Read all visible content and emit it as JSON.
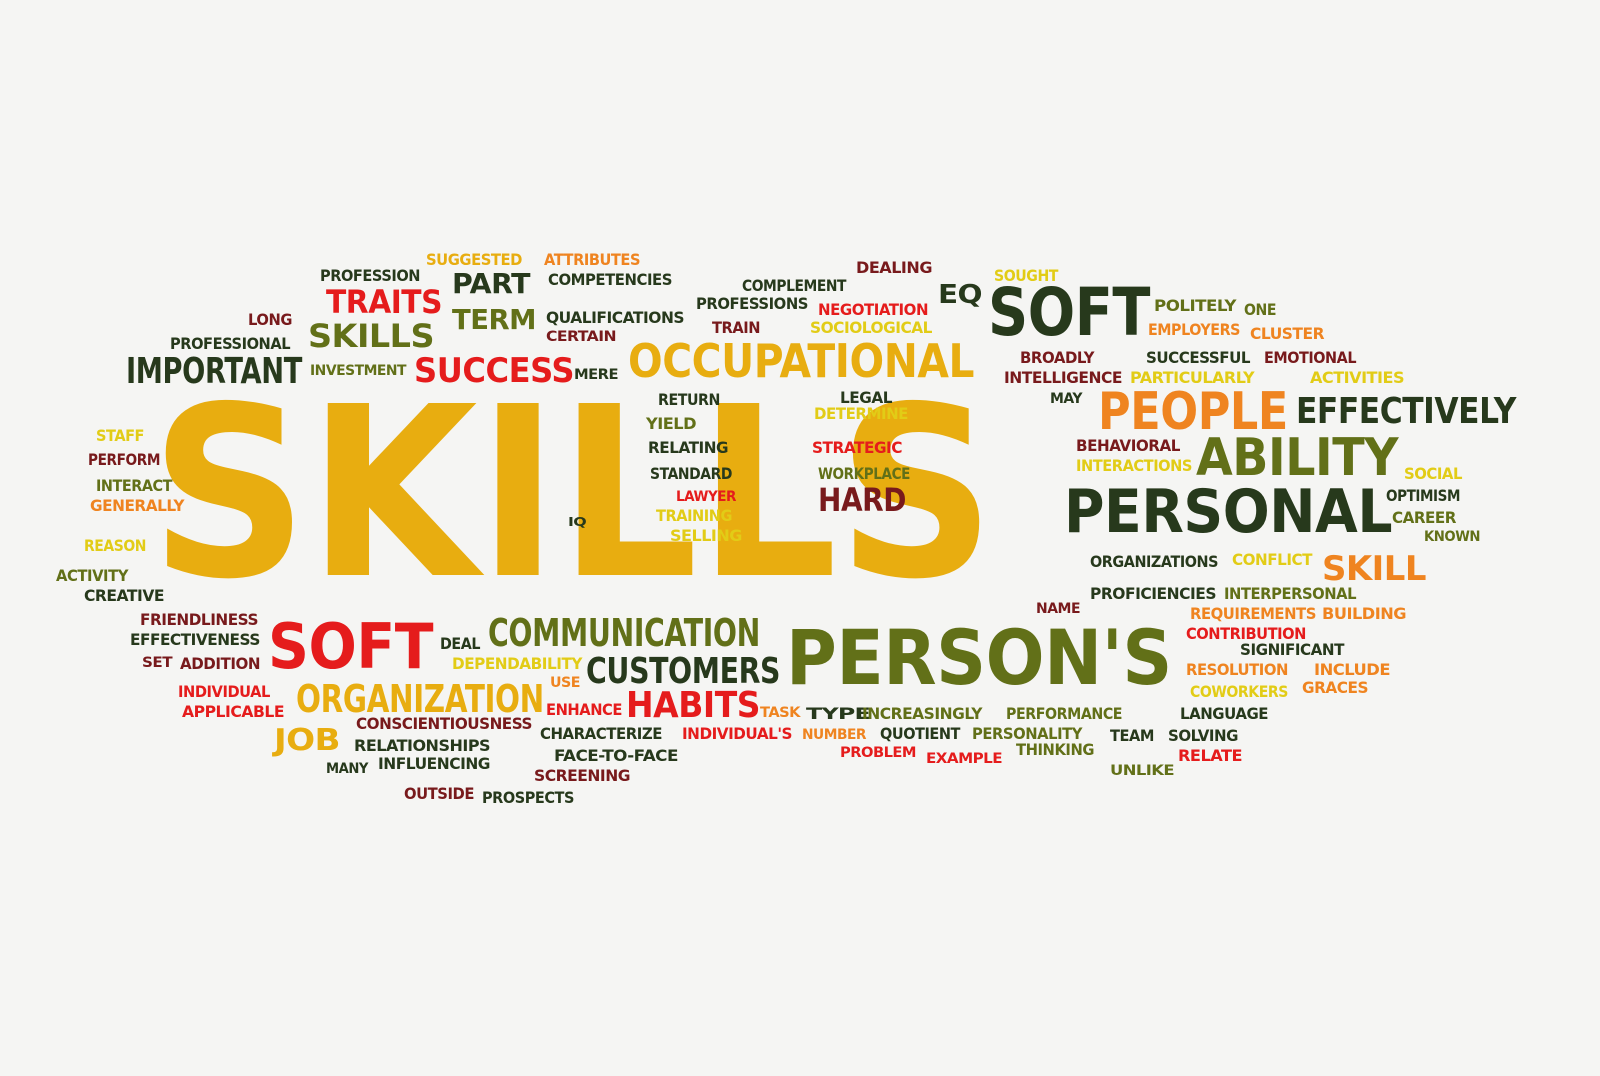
{
  "word_cloud": {
    "palette": {
      "gold": "#e8ad10",
      "orange": "#ef8420",
      "yellow": "#e2cc16",
      "olive": "#627018",
      "dark_green": "#27391c",
      "red": "#e51c1c",
      "brown": "#781a1c",
      "background": "#f5f5f3"
    },
    "words": [
      {
        "text": "SKILLS",
        "color": "gold"
      },
      {
        "text": "OCCUPATIONAL",
        "color": "gold"
      },
      {
        "text": "PERSON'S",
        "color": "olive"
      },
      {
        "text": "PERSONAL",
        "color": "dark_green"
      },
      {
        "text": "SOFT",
        "color": "dark_green"
      },
      {
        "text": "SOFT",
        "color": "red"
      },
      {
        "text": "PEOPLE",
        "color": "orange"
      },
      {
        "text": "ABILITY",
        "color": "olive"
      },
      {
        "text": "EFFECTIVELY",
        "color": "dark_green"
      },
      {
        "text": "COMMUNICATION",
        "color": "olive"
      },
      {
        "text": "CUSTOMERS",
        "color": "dark_green"
      },
      {
        "text": "ORGANIZATION",
        "color": "gold"
      },
      {
        "text": "HABITS",
        "color": "red"
      },
      {
        "text": "SUCCESS",
        "color": "red"
      },
      {
        "text": "IMPORTANT",
        "color": "dark_green"
      },
      {
        "text": "TRAITS",
        "color": "red"
      },
      {
        "text": "SKILLS",
        "color": "olive"
      },
      {
        "text": "PART",
        "color": "dark_green"
      },
      {
        "text": "TERM",
        "color": "olive"
      },
      {
        "text": "HARD",
        "color": "brown"
      },
      {
        "text": "SKILL",
        "color": "orange"
      },
      {
        "text": "JOB",
        "color": "gold"
      },
      {
        "text": "EQ",
        "color": "dark_green"
      },
      {
        "text": "PROFESSION",
        "color": "dark_green"
      },
      {
        "text": "SUGGESTED",
        "color": "gold"
      },
      {
        "text": "ATTRIBUTES",
        "color": "orange"
      },
      {
        "text": "COMPETENCIES",
        "color": "dark_green"
      },
      {
        "text": "DEALING",
        "color": "brown"
      },
      {
        "text": "SOUGHT",
        "color": "yellow"
      },
      {
        "text": "COMPLEMENT",
        "color": "dark_green"
      },
      {
        "text": "PROFESSIONS",
        "color": "dark_green"
      },
      {
        "text": "NEGOTIATION",
        "color": "red"
      },
      {
        "text": "TRAIN",
        "color": "brown"
      },
      {
        "text": "SOCIOLOGICAL",
        "color": "yellow"
      },
      {
        "text": "POLITELY",
        "color": "olive"
      },
      {
        "text": "ONE",
        "color": "olive"
      },
      {
        "text": "EMPLOYERS",
        "color": "orange"
      },
      {
        "text": "CLUSTER",
        "color": "orange"
      },
      {
        "text": "LONG",
        "color": "brown"
      },
      {
        "text": "PROFESSIONAL",
        "color": "dark_green"
      },
      {
        "text": "QUALIFICATIONS",
        "color": "dark_green"
      },
      {
        "text": "CERTAIN",
        "color": "brown"
      },
      {
        "text": "INVESTMENT",
        "color": "olive"
      },
      {
        "text": "MERE",
        "color": "dark_green"
      },
      {
        "text": "BROADLY",
        "color": "brown"
      },
      {
        "text": "SUCCESSFUL",
        "color": "dark_green"
      },
      {
        "text": "EMOTIONAL",
        "color": "brown"
      },
      {
        "text": "INTELLIGENCE",
        "color": "brown"
      },
      {
        "text": "PARTICULARLY",
        "color": "yellow"
      },
      {
        "text": "ACTIVITIES",
        "color": "yellow"
      },
      {
        "text": "LEGAL",
        "color": "dark_green"
      },
      {
        "text": "RETURN",
        "color": "dark_green"
      },
      {
        "text": "DETERMINE",
        "color": "yellow"
      },
      {
        "text": "MAY",
        "color": "dark_green"
      },
      {
        "text": "YIELD",
        "color": "olive"
      },
      {
        "text": "RELATING",
        "color": "dark_green"
      },
      {
        "text": "STRATEGIC",
        "color": "red"
      },
      {
        "text": "STAFF",
        "color": "yellow"
      },
      {
        "text": "PERFORM",
        "color": "brown"
      },
      {
        "text": "BEHAVIORAL",
        "color": "brown"
      },
      {
        "text": "INTERACTIONS",
        "color": "yellow"
      },
      {
        "text": "SOCIAL",
        "color": "yellow"
      },
      {
        "text": "STANDARD",
        "color": "dark_green"
      },
      {
        "text": "WORKPLACE",
        "color": "olive"
      },
      {
        "text": "INTERACT",
        "color": "olive"
      },
      {
        "text": "GENERALLY",
        "color": "orange"
      },
      {
        "text": "LAWYER",
        "color": "red"
      },
      {
        "text": "TRAINING",
        "color": "yellow"
      },
      {
        "text": "SELLING",
        "color": "yellow"
      },
      {
        "text": "IQ",
        "color": "dark_green"
      },
      {
        "text": "OPTIMISM",
        "color": "dark_green"
      },
      {
        "text": "CAREER",
        "color": "olive"
      },
      {
        "text": "KNOWN",
        "color": "olive"
      },
      {
        "text": "REASON",
        "color": "yellow"
      },
      {
        "text": "ORGANIZATIONS",
        "color": "dark_green"
      },
      {
        "text": "CONFLICT",
        "color": "yellow"
      },
      {
        "text": "ACTIVITY",
        "color": "olive"
      },
      {
        "text": "CREATIVE",
        "color": "dark_green"
      },
      {
        "text": "PROFICIENCIES",
        "color": "dark_green"
      },
      {
        "text": "INTERPERSONAL",
        "color": "olive"
      },
      {
        "text": "FRIENDLINESS",
        "color": "brown"
      },
      {
        "text": "NAME",
        "color": "brown"
      },
      {
        "text": "REQUIREMENTS",
        "color": "orange"
      },
      {
        "text": "BUILDING",
        "color": "orange"
      },
      {
        "text": "EFFECTIVENESS",
        "color": "dark_green"
      },
      {
        "text": "CONTRIBUTION",
        "color": "red"
      },
      {
        "text": "DEAL",
        "color": "dark_green"
      },
      {
        "text": "SIGNIFICANT",
        "color": "dark_green"
      },
      {
        "text": "SET",
        "color": "brown"
      },
      {
        "text": "ADDITION",
        "color": "brown"
      },
      {
        "text": "DEPENDABILITY",
        "color": "yellow"
      },
      {
        "text": "RESOLUTION",
        "color": "orange"
      },
      {
        "text": "INCLUDE",
        "color": "orange"
      },
      {
        "text": "USE",
        "color": "orange"
      },
      {
        "text": "INDIVIDUAL",
        "color": "red"
      },
      {
        "text": "COWORKERS",
        "color": "yellow"
      },
      {
        "text": "GRACES",
        "color": "orange"
      },
      {
        "text": "APPLICABLE",
        "color": "red"
      },
      {
        "text": "ENHANCE",
        "color": "red"
      },
      {
        "text": "TASK",
        "color": "orange"
      },
      {
        "text": "TYPE",
        "color": "dark_green"
      },
      {
        "text": "INCREASINGLY",
        "color": "olive"
      },
      {
        "text": "PERFORMANCE",
        "color": "olive"
      },
      {
        "text": "LANGUAGE",
        "color": "dark_green"
      },
      {
        "text": "CONSCIENTIOUSNESS",
        "color": "brown"
      },
      {
        "text": "CHARACTERIZE",
        "color": "dark_green"
      },
      {
        "text": "INDIVIDUAL'S",
        "color": "red"
      },
      {
        "text": "NUMBER",
        "color": "orange"
      },
      {
        "text": "QUOTIENT",
        "color": "dark_green"
      },
      {
        "text": "PERSONALITY",
        "color": "olive"
      },
      {
        "text": "TEAM",
        "color": "dark_green"
      },
      {
        "text": "SOLVING",
        "color": "dark_green"
      },
      {
        "text": "RELATIONSHIPS",
        "color": "dark_green"
      },
      {
        "text": "FACE-TO-FACE",
        "color": "dark_green"
      },
      {
        "text": "PROBLEM",
        "color": "red"
      },
      {
        "text": "EXAMPLE",
        "color": "red"
      },
      {
        "text": "THINKING",
        "color": "olive"
      },
      {
        "text": "RELATE",
        "color": "red"
      },
      {
        "text": "MANY",
        "color": "dark_green"
      },
      {
        "text": "INFLUENCING",
        "color": "dark_green"
      },
      {
        "text": "SCREENING",
        "color": "brown"
      },
      {
        "text": "UNLIKE",
        "color": "olive"
      },
      {
        "text": "OUTSIDE",
        "color": "brown"
      },
      {
        "text": "PROSPECTS",
        "color": "dark_green"
      }
    ]
  }
}
